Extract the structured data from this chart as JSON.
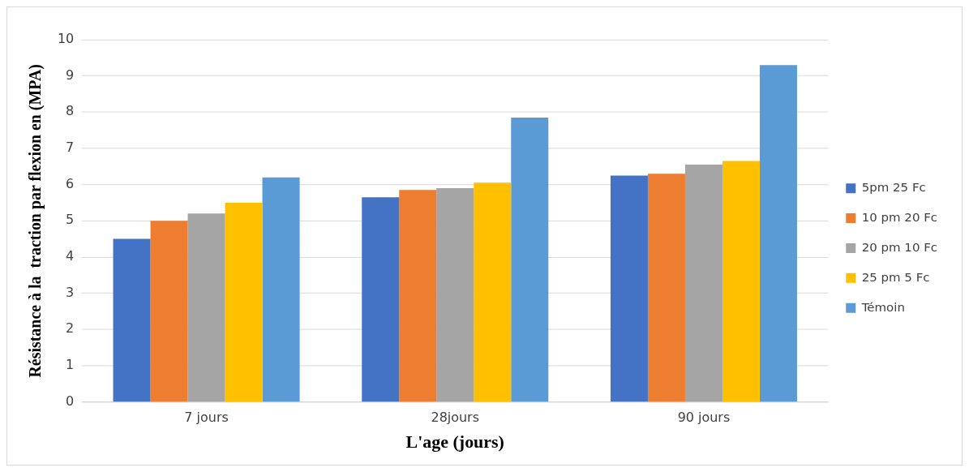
{
  "chart_data": {
    "type": "bar",
    "xlabel": "L'age (jours)",
    "ylabel": "Résistance à la  traction par flexion en (MPA)",
    "categories": [
      "7 jours",
      "28jours",
      "90 jours"
    ],
    "series": [
      {
        "name": "5pm 25 Fc",
        "color": "#4472c4",
        "values": [
          4.5,
          5.65,
          6.25
        ]
      },
      {
        "name": "10 pm 20 Fc",
        "color": "#ed7d31",
        "values": [
          5.0,
          5.85,
          6.3
        ]
      },
      {
        "name": "20 pm 10 Fc",
        "color": "#a5a5a5",
        "values": [
          5.2,
          5.9,
          6.55
        ]
      },
      {
        "name": "25 pm 5 Fc",
        "color": "#ffc000",
        "values": [
          5.5,
          6.05,
          6.65
        ]
      },
      {
        "name": "Témoin",
        "color": "#5b9bd5",
        "values": [
          6.2,
          7.85,
          9.3
        ]
      }
    ],
    "ylim": [
      0,
      10
    ],
    "yticks": [
      0,
      1,
      2,
      3,
      4,
      5,
      6,
      7,
      8,
      9,
      10
    ],
    "grid": "y",
    "legend": "right"
  }
}
